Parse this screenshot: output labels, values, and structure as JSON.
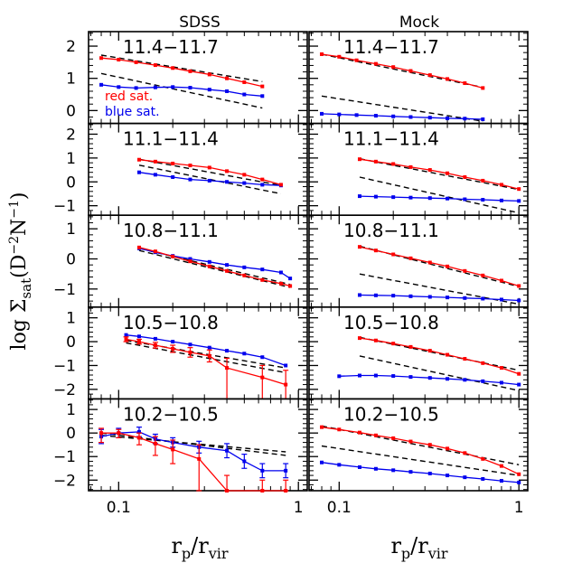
{
  "chart_data": {
    "type": "line",
    "figure_ylabel": {
      "base": "log Σ",
      "sub": "sat",
      "units": "(D",
      "sup1": "−2",
      "mid": "N",
      "sup2": "−1",
      "close": ")"
    },
    "figure_xlabel": {
      "base": "r",
      "sub1": "p",
      "slash": "/r",
      "sub2": "vir"
    },
    "columns": [
      "SDSS",
      "Mock"
    ],
    "xscale": "log",
    "xlim": [
      0.068,
      1.12
    ],
    "x_ticks": [
      0.1,
      1
    ],
    "x_tick_labels": [
      "0.1",
      "1"
    ],
    "legend": {
      "red": "red   sat.",
      "blue": "blue  sat."
    },
    "colors": {
      "red": "#ff0000",
      "blue": "#0000ee",
      "model": "#000000"
    },
    "rows": [
      {
        "label": "11.4−11.7",
        "ylim": [
          -0.4,
          2.45
        ],
        "y_ticks": [
          0,
          1,
          2
        ],
        "y_tick_labels": [
          "0",
          "1",
          "2"
        ],
        "sdss": {
          "red": {
            "x": [
              0.08,
              0.1,
              0.125,
              0.16,
              0.2,
              0.25,
              0.32,
              0.4,
              0.5,
              0.63
            ],
            "y": [
              1.63,
              1.58,
              1.5,
              1.41,
              1.32,
              1.22,
              1.12,
              1.0,
              0.88,
              0.75
            ]
          },
          "blue": {
            "x": [
              0.08,
              0.1,
              0.125,
              0.16,
              0.2,
              0.25,
              0.32,
              0.4,
              0.5,
              0.63
            ],
            "y": [
              0.8,
              0.73,
              0.7,
              0.72,
              0.73,
              0.71,
              0.65,
              0.6,
              0.5,
              0.45
            ]
          },
          "dash_red": {
            "x": [
              0.08,
              0.63
            ],
            "y": [
              1.72,
              0.9
            ]
          },
          "dash_blue": {
            "x": [
              0.08,
              0.63
            ],
            "y": [
              1.15,
              0.08
            ]
          }
        },
        "mock": {
          "red": {
            "x": [
              0.08,
              0.1,
              0.125,
              0.16,
              0.2,
              0.25,
              0.32,
              0.4,
              0.5,
              0.63
            ],
            "y": [
              1.75,
              1.67,
              1.56,
              1.45,
              1.35,
              1.23,
              1.1,
              0.98,
              0.85,
              0.7
            ]
          },
          "blue": {
            "x": [
              0.08,
              0.1,
              0.125,
              0.16,
              0.2,
              0.25,
              0.32,
              0.4,
              0.5,
              0.63
            ],
            "y": [
              -0.1,
              -0.12,
              -0.14,
              -0.16,
              -0.18,
              -0.2,
              -0.22,
              -0.24,
              -0.25,
              -0.27
            ]
          },
          "dash_red": {
            "x": [
              0.08,
              0.63
            ],
            "y": [
              1.75,
              0.72
            ]
          },
          "dash_blue": {
            "x": [
              0.08,
              0.63
            ],
            "y": [
              0.45,
              -0.33
            ]
          }
        }
      },
      {
        "label": "11.1−11.4",
        "ylim": [
          -1.4,
          2.45
        ],
        "y_ticks": [
          -1,
          0,
          1,
          2
        ],
        "y_tick_labels": [
          "−1",
          "0",
          "1",
          "2"
        ],
        "sdss": {
          "red": {
            "x": [
              0.13,
              0.16,
              0.2,
              0.25,
              0.32,
              0.4,
              0.5,
              0.63,
              0.8
            ],
            "y": [
              0.93,
              0.85,
              0.77,
              0.69,
              0.6,
              0.45,
              0.3,
              0.1,
              -0.12
            ]
          },
          "blue": {
            "x": [
              0.13,
              0.16,
              0.2,
              0.25,
              0.32,
              0.4,
              0.5,
              0.63,
              0.8
            ],
            "y": [
              0.4,
              0.3,
              0.2,
              0.1,
              0.05,
              0.0,
              -0.05,
              -0.12,
              -0.15
            ]
          },
          "dash_red": {
            "x": [
              0.13,
              0.8
            ],
            "y": [
              0.95,
              -0.15
            ]
          },
          "dash_blue": {
            "x": [
              0.13,
              0.8
            ],
            "y": [
              0.7,
              -0.5
            ]
          }
        },
        "mock": {
          "red": {
            "x": [
              0.13,
              0.16,
              0.2,
              0.25,
              0.32,
              0.4,
              0.5,
              0.63,
              0.8,
              1.0
            ],
            "y": [
              0.95,
              0.85,
              0.75,
              0.62,
              0.5,
              0.36,
              0.2,
              0.05,
              -0.12,
              -0.3
            ]
          },
          "blue": {
            "x": [
              0.13,
              0.16,
              0.2,
              0.25,
              0.32,
              0.4,
              0.5,
              0.63,
              0.8,
              1.0
            ],
            "y": [
              -0.6,
              -0.62,
              -0.64,
              -0.66,
              -0.68,
              -0.7,
              -0.73,
              -0.75,
              -0.78,
              -0.8
            ]
          },
          "dash_red": {
            "x": [
              0.13,
              1.0
            ],
            "y": [
              0.97,
              -0.32
            ]
          },
          "dash_blue": {
            "x": [
              0.13,
              1.0
            ],
            "y": [
              0.2,
              -1.3
            ]
          }
        }
      },
      {
        "label": "10.8−11.1",
        "ylim": [
          -1.6,
          1.45
        ],
        "y_ticks": [
          -1,
          0,
          1
        ],
        "y_tick_labels": [
          "−1",
          "0",
          "1"
        ],
        "sdss": {
          "red": {
            "x": [
              0.13,
              0.16,
              0.2,
              0.25,
              0.32,
              0.4,
              0.5,
              0.63,
              0.8,
              0.9
            ],
            "y": [
              0.38,
              0.25,
              0.08,
              -0.08,
              -0.25,
              -0.4,
              -0.55,
              -0.7,
              -0.82,
              -0.9
            ]
          },
          "blue": {
            "x": [
              0.13,
              0.16,
              0.2,
              0.25,
              0.32,
              0.4,
              0.5,
              0.63,
              0.8,
              0.9
            ],
            "y": [
              0.35,
              0.22,
              0.1,
              0.0,
              -0.1,
              -0.2,
              -0.28,
              -0.35,
              -0.45,
              -0.65
            ]
          },
          "dash_red": {
            "x": [
              0.13,
              0.9
            ],
            "y": [
              0.35,
              -0.85
            ]
          },
          "dash_blue": {
            "x": [
              0.13,
              0.9
            ],
            "y": [
              0.28,
              -0.95
            ]
          }
        },
        "mock": {
          "red": {
            "x": [
              0.13,
              0.16,
              0.2,
              0.25,
              0.32,
              0.4,
              0.5,
              0.63,
              0.8,
              1.0
            ],
            "y": [
              0.4,
              0.28,
              0.15,
              0.02,
              -0.12,
              -0.25,
              -0.4,
              -0.55,
              -0.72,
              -0.9
            ]
          },
          "blue": {
            "x": [
              0.13,
              0.16,
              0.2,
              0.25,
              0.32,
              0.4,
              0.5,
              0.63,
              0.8,
              1.0
            ],
            "y": [
              -1.2,
              -1.21,
              -1.22,
              -1.24,
              -1.26,
              -1.28,
              -1.3,
              -1.32,
              -1.35,
              -1.38
            ]
          },
          "dash_red": {
            "x": [
              0.13,
              1.0
            ],
            "y": [
              0.42,
              -0.92
            ]
          },
          "dash_blue": {
            "x": [
              0.13,
              1.0
            ],
            "y": [
              -0.5,
              -1.5
            ]
          }
        }
      },
      {
        "label": "10.5−10.8",
        "ylim": [
          -2.4,
          1.45
        ],
        "y_ticks": [
          -2,
          -1,
          0,
          1
        ],
        "y_tick_labels": [
          "−2",
          "−1",
          "0",
          "1"
        ],
        "sdss": {
          "red": {
            "x": [
              0.11,
              0.13,
              0.16,
              0.2,
              0.25,
              0.32,
              0.4,
              0.63,
              0.85
            ],
            "y": [
              0.1,
              0.0,
              -0.15,
              -0.3,
              -0.45,
              -0.6,
              -1.1,
              -1.5,
              -1.8
            ],
            "err_up": [
              0.1,
              0.1,
              0.12,
              0.15,
              0.2,
              0.25,
              0.4,
              0.5,
              0.6
            ],
            "err_dn": [
              0.1,
              0.1,
              0.12,
              0.15,
              0.2,
              0.25,
              1.3,
              1.0,
              0.6
            ]
          },
          "blue": {
            "x": [
              0.11,
              0.13,
              0.16,
              0.2,
              0.25,
              0.32,
              0.4,
              0.5,
              0.63,
              0.85
            ],
            "y": [
              0.28,
              0.22,
              0.12,
              0.0,
              -0.12,
              -0.25,
              -0.38,
              -0.5,
              -0.65,
              -1.0
            ]
          },
          "dash_red": {
            "x": [
              0.11,
              0.85
            ],
            "y": [
              -0.05,
              -1.3
            ]
          },
          "dash_blue": {
            "x": [
              0.11,
              0.85
            ],
            "y": [
              0.05,
              -1.1
            ]
          }
        },
        "mock": {
          "red": {
            "x": [
              0.13,
              0.16,
              0.2,
              0.25,
              0.32,
              0.4,
              0.5,
              0.63,
              0.8,
              1.0
            ],
            "y": [
              0.15,
              0.05,
              -0.08,
              -0.22,
              -0.38,
              -0.55,
              -0.72,
              -0.9,
              -1.1,
              -1.35
            ]
          },
          "blue": {
            "x": [
              0.1,
              0.13,
              0.16,
              0.2,
              0.25,
              0.32,
              0.4,
              0.5,
              0.63,
              0.8,
              1.0
            ],
            "y": [
              -1.45,
              -1.42,
              -1.42,
              -1.44,
              -1.48,
              -1.52,
              -1.56,
              -1.6,
              -1.66,
              -1.72,
              -1.8
            ]
          },
          "dash_red": {
            "x": [
              0.13,
              1.0
            ],
            "y": [
              0.18,
              -1.2
            ]
          },
          "dash_blue": {
            "x": [
              0.13,
              1.0
            ],
            "y": [
              -0.6,
              -2.05
            ]
          }
        }
      },
      {
        "label": "10.2−10.5",
        "ylim": [
          -2.45,
          1.45
        ],
        "y_ticks": [
          -2,
          -1,
          0,
          1
        ],
        "y_tick_labels": [
          "−2",
          "−1",
          "0",
          "1"
        ],
        "sdss": {
          "red": {
            "x": [
              0.08,
              0.1,
              0.13,
              0.16,
              0.2,
              0.28,
              0.4,
              0.63,
              0.85
            ],
            "y": [
              0.0,
              0.0,
              -0.2,
              -0.45,
              -0.7,
              -1.1,
              -2.5,
              -2.5,
              -2.5
            ],
            "err_up": [
              0.2,
              0.15,
              0.2,
              0.3,
              0.4,
              0.6,
              0.7,
              0.5,
              0.5
            ],
            "err_dn": [
              0.4,
              0.2,
              0.3,
              0.5,
              0.6,
              1.4,
              0.2,
              0.2,
              0.2
            ]
          },
          "blue": {
            "x": [
              0.08,
              0.1,
              0.13,
              0.16,
              0.2,
              0.28,
              0.4,
              0.5,
              0.63,
              0.85
            ],
            "y": [
              -0.15,
              0.0,
              0.05,
              -0.25,
              -0.4,
              -0.6,
              -0.75,
              -1.2,
              -1.6,
              -1.6
            ],
            "err_up": [
              0.3,
              0.2,
              0.2,
              0.2,
              0.2,
              0.25,
              0.3,
              0.3,
              0.3,
              0.3
            ],
            "err_dn": [
              0.3,
              0.2,
              0.2,
              0.2,
              0.2,
              0.25,
              0.3,
              0.3,
              0.3,
              0.3
            ]
          },
          "dash_red": {
            "x": [
              0.08,
              0.85
            ],
            "y": [
              -0.1,
              -0.8
            ]
          },
          "dash_blue": {
            "x": [
              0.08,
              0.85
            ],
            "y": [
              0.0,
              -0.95
            ]
          }
        },
        "mock": {
          "red": {
            "x": [
              0.08,
              0.1,
              0.13,
              0.16,
              0.2,
              0.25,
              0.32,
              0.4,
              0.5,
              0.63,
              0.8,
              1.0
            ],
            "y": [
              0.25,
              0.15,
              0.02,
              -0.1,
              -0.22,
              -0.36,
              -0.5,
              -0.66,
              -0.85,
              -1.1,
              -1.4,
              -1.75
            ]
          },
          "blue": {
            "x": [
              0.08,
              0.1,
              0.13,
              0.16,
              0.2,
              0.25,
              0.32,
              0.4,
              0.5,
              0.63,
              0.8,
              1.0
            ],
            "y": [
              -1.25,
              -1.35,
              -1.45,
              -1.52,
              -1.58,
              -1.65,
              -1.72,
              -1.8,
              -1.88,
              -1.95,
              -2.03,
              -2.1
            ]
          },
          "dash_red": {
            "x": [
              0.08,
              1.0
            ],
            "y": [
              0.3,
              -1.35
            ]
          },
          "dash_blue": {
            "x": [
              0.08,
              1.0
            ],
            "y": [
              -0.55,
              -1.8
            ]
          }
        }
      }
    ]
  }
}
